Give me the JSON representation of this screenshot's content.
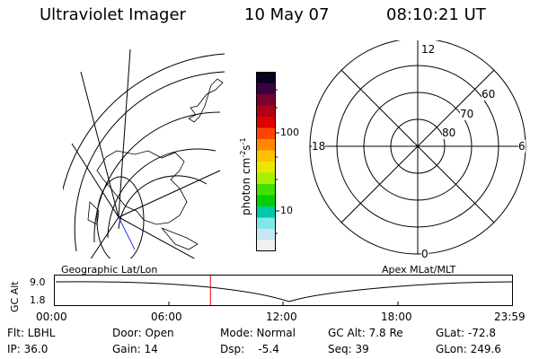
{
  "header": {
    "instrument": "Ultraviolet Imager",
    "date": "10 May 07",
    "time": "08:10:21 UT"
  },
  "colorbar": {
    "unit_label": "photon cm",
    "unit_exp1": "-2",
    "unit_mid": "s",
    "unit_exp2": "-1",
    "ticks": [
      "100",
      "10"
    ],
    "colors": [
      "#0a0020",
      "#3a0040",
      "#7a0030",
      "#b0001a",
      "#e00000",
      "#ff4400",
      "#ff8800",
      "#ffc000",
      "#e8e800",
      "#a8f000",
      "#40e000",
      "#00d000",
      "#00c8a8",
      "#80e8e8",
      "#c8e8f0",
      "#f0f0f0"
    ]
  },
  "maps": {
    "left_caption": "Geographic Lat/Lon",
    "right_caption": "Apex MLat/MLT",
    "mlt_labels": {
      "top": "12",
      "left": "18",
      "right": "6",
      "bottom": "0"
    },
    "mlat_labels": [
      "60",
      "70",
      "80"
    ]
  },
  "altitude_plot": {
    "ylabel": "GC Alt",
    "yticks": [
      "9.0",
      "1.8"
    ],
    "xticks": [
      "00:00",
      "06:00",
      "12:00",
      "18:00",
      "23:59"
    ],
    "current_time_marker_hours": 8.17
  },
  "status": {
    "flt": "Flt: LBHL",
    "ip": "IP: 36.0",
    "door": "Door: Open",
    "gain": "Gain: 14",
    "mode": "Mode: Normal",
    "dsp": "Dsp:    -5.4",
    "gcalt": "GC Alt: 7.8 Re",
    "seq": "Seq: 39",
    "glat": "GLat: -72.8",
    "glon": "GLon: 249.6"
  }
}
